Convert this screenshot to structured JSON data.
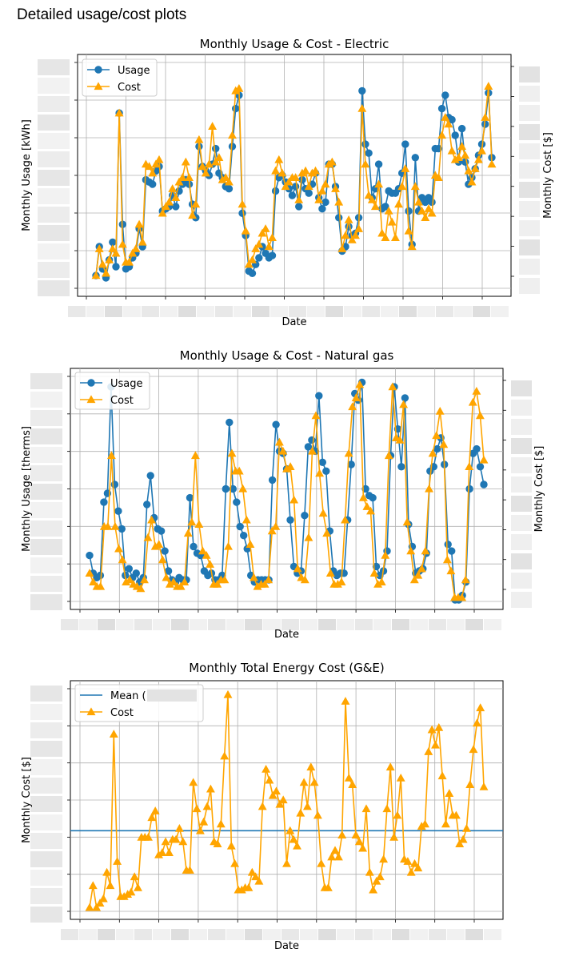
{
  "page": {
    "heading": "Detailed usage/cost plots"
  },
  "colors": {
    "usage": "#1f77b4",
    "cost": "#ffa500",
    "mean": "#1f77b4",
    "grid": "#b0b0b0",
    "redacted": "#dcdcdc"
  },
  "chart_data": [
    {
      "type": "line",
      "title": "Monthly Usage & Cost - Electric",
      "xlabel": "Date",
      "ylabel": "Monthly Usage [kWh]",
      "y2label": "Monthly Cost [$]",
      "tick_labels_redacted": true,
      "grid": true,
      "legend_position": "top-left",
      "series": [
        {
          "name": "Usage",
          "marker": "circle",
          "color": "#1f77b4",
          "values": [
            0.05,
            0.18,
            0.08,
            0.04,
            0.12,
            0.2,
            0.09,
            0.78,
            0.28,
            0.08,
            0.09,
            0.13,
            0.15,
            0.26,
            0.18,
            0.48,
            0.47,
            0.46,
            0.52,
            0.54,
            0.34,
            0.35,
            0.36,
            0.41,
            0.36,
            0.43,
            0.46,
            0.48,
            0.46,
            0.37,
            0.31,
            0.63,
            0.54,
            0.52,
            0.5,
            0.55,
            0.62,
            0.51,
            0.49,
            0.45,
            0.44,
            0.63,
            0.8,
            0.86,
            0.33,
            0.23,
            0.07,
            0.06,
            0.1,
            0.13,
            0.18,
            0.15,
            0.13,
            0.14,
            0.43,
            0.49,
            0.5,
            0.47,
            0.44,
            0.41,
            0.45,
            0.36,
            0.48,
            0.44,
            0.42,
            0.46,
            0.51,
            0.4,
            0.35,
            0.38,
            0.55,
            0.55,
            0.45,
            0.31,
            0.16,
            0.18,
            0.27,
            0.23,
            0.24,
            0.31,
            0.88,
            0.64,
            0.6,
            0.4,
            0.44,
            0.55,
            0.35,
            0.36,
            0.43,
            0.42,
            0.42,
            0.44,
            0.51,
            0.64,
            0.34,
            0.19,
            0.58,
            0.34,
            0.4,
            0.38,
            0.4,
            0.38,
            0.62,
            0.62,
            0.8,
            0.86,
            0.76,
            0.75,
            0.68,
            0.56,
            0.71,
            0.56,
            0.46,
            0.49,
            0.53,
            0.59,
            0.64,
            0.73,
            0.87,
            0.58
          ]
        },
        {
          "name": "Cost",
          "marker": "triangle",
          "color": "#ffa500",
          "values": [
            0.05,
            0.17,
            0.1,
            0.06,
            0.12,
            0.17,
            0.15,
            0.78,
            0.19,
            0.11,
            0.11,
            0.15,
            0.17,
            0.28,
            0.2,
            0.55,
            0.54,
            0.51,
            0.55,
            0.57,
            0.33,
            0.36,
            0.38,
            0.44,
            0.4,
            0.47,
            0.49,
            0.56,
            0.49,
            0.32,
            0.37,
            0.66,
            0.54,
            0.51,
            0.55,
            0.72,
            0.56,
            0.58,
            0.48,
            0.49,
            0.47,
            0.68,
            0.88,
            0.89,
            0.37,
            0.25,
            0.1,
            0.12,
            0.17,
            0.19,
            0.24,
            0.26,
            0.18,
            0.22,
            0.52,
            0.57,
            0.51,
            0.45,
            0.47,
            0.49,
            0.49,
            0.39,
            0.51,
            0.52,
            0.45,
            0.51,
            0.52,
            0.39,
            0.43,
            0.46,
            0.55,
            0.56,
            0.44,
            0.38,
            0.17,
            0.23,
            0.3,
            0.21,
            0.23,
            0.26,
            0.8,
            0.55,
            0.41,
            0.39,
            0.36,
            0.46,
            0.24,
            0.22,
            0.34,
            0.29,
            0.22,
            0.37,
            0.45,
            0.53,
            0.25,
            0.18,
            0.45,
            0.38,
            0.34,
            0.31,
            0.35,
            0.33,
            0.5,
            0.49,
            0.68,
            0.76,
            0.73,
            0.61,
            0.57,
            0.58,
            0.63,
            0.59,
            0.52,
            0.47,
            0.53,
            0.57,
            0.61,
            0.76,
            0.9,
            0.55
          ]
        }
      ]
    },
    {
      "type": "line",
      "title": "Monthly Usage & Cost - Natural gas",
      "xlabel": "Date",
      "ylabel": "Monthly Usage [therms]",
      "y2label": "Monthly Cost [$]",
      "tick_labels_redacted": true,
      "grid": true,
      "legend_position": "top-left",
      "series": [
        {
          "name": "Usage",
          "marker": "circle",
          "color": "#1f77b4",
          "values": [
            0.2,
            0.12,
            0.1,
            0.11,
            0.44,
            0.48,
            0.96,
            0.52,
            0.4,
            0.32,
            0.11,
            0.14,
            0.1,
            0.12,
            0.08,
            0.1,
            0.43,
            0.56,
            0.37,
            0.32,
            0.31,
            0.22,
            0.13,
            0.09,
            0.08,
            0.1,
            0.09,
            0.09,
            0.46,
            0.24,
            0.21,
            0.2,
            0.13,
            0.11,
            0.12,
            0.09,
            0.09,
            0.11,
            0.5,
            0.8,
            0.5,
            0.44,
            0.33,
            0.29,
            0.23,
            0.11,
            0.08,
            0.09,
            0.09,
            0.09,
            0.09,
            0.54,
            0.79,
            0.67,
            0.66,
            0.59,
            0.36,
            0.15,
            0.12,
            0.13,
            0.38,
            0.69,
            0.72,
            0.67,
            0.92,
            0.62,
            0.58,
            0.31,
            0.13,
            0.11,
            0.12,
            0.12,
            0.36,
            0.61,
            0.93,
            0.9,
            0.98,
            0.5,
            0.47,
            0.46,
            0.15,
            0.11,
            0.13,
            0.22,
            0.65,
            0.96,
            0.77,
            0.6,
            0.91,
            0.34,
            0.24,
            0.12,
            0.13,
            0.14,
            0.21,
            0.58,
            0.6,
            0.68,
            0.73,
            0.61,
            0.25,
            0.22,
            0.0,
            0.0,
            0.02,
            0.08,
            0.5,
            0.66,
            0.68,
            0.6,
            0.52
          ]
        },
        {
          "name": "Cost",
          "marker": "triangle",
          "color": "#ffa500",
          "values": [
            0.12,
            0.08,
            0.06,
            0.06,
            0.33,
            0.33,
            0.65,
            0.33,
            0.23,
            0.18,
            0.08,
            0.09,
            0.07,
            0.06,
            0.05,
            0.09,
            0.28,
            0.36,
            0.24,
            0.25,
            0.18,
            0.1,
            0.07,
            0.08,
            0.06,
            0.06,
            0.08,
            0.3,
            0.35,
            0.65,
            0.34,
            0.22,
            0.2,
            0.16,
            0.07,
            0.07,
            0.09,
            0.09,
            0.24,
            0.66,
            0.58,
            0.58,
            0.5,
            0.36,
            0.25,
            0.1,
            0.06,
            0.07,
            0.07,
            0.09,
            0.31,
            0.33,
            0.71,
            0.67,
            0.59,
            0.6,
            0.45,
            0.14,
            0.1,
            0.09,
            0.28,
            0.67,
            0.83,
            0.57,
            0.39,
            0.3,
            0.12,
            0.07,
            0.07,
            0.08,
            0.36,
            0.66,
            0.87,
            0.91,
            0.97,
            0.46,
            0.42,
            0.4,
            0.12,
            0.07,
            0.08,
            0.2,
            0.65,
            0.96,
            0.73,
            0.72,
            0.88,
            0.35,
            0.22,
            0.09,
            0.11,
            0.14,
            0.22,
            0.5,
            0.66,
            0.74,
            0.85,
            0.7,
            0.18,
            0.13,
            0.01,
            0.01,
            0.01,
            0.09,
            0.6,
            0.89,
            0.94,
            0.83,
            0.63
          ]
        }
      ]
    },
    {
      "type": "line",
      "title": "Monthly Total Energy Cost (G&E)",
      "xlabel": "Date",
      "ylabel": "Monthly Cost [$]",
      "tick_labels_redacted": true,
      "grid": true,
      "legend_position": "top-left",
      "mean_line": {
        "label": "Mean (",
        "value": 0.36
      },
      "series": [
        {
          "name": "Cost",
          "marker": "triangle",
          "color": "#ffa500",
          "values": [
            0.01,
            0.11,
            0.01,
            0.03,
            0.05,
            0.17,
            0.11,
            0.8,
            0.22,
            0.06,
            0.06,
            0.07,
            0.08,
            0.15,
            0.1,
            0.33,
            0.33,
            0.33,
            0.42,
            0.45,
            0.25,
            0.26,
            0.31,
            0.26,
            0.32,
            0.32,
            0.37,
            0.31,
            0.18,
            0.18,
            0.58,
            0.46,
            0.36,
            0.4,
            0.47,
            0.55,
            0.31,
            0.3,
            0.39,
            0.7,
            0.98,
            0.29,
            0.21,
            0.09,
            0.09,
            0.1,
            0.1,
            0.17,
            0.15,
            0.13,
            0.47,
            0.64,
            0.59,
            0.52,
            0.54,
            0.48,
            0.5,
            0.21,
            0.36,
            0.32,
            0.29,
            0.44,
            0.58,
            0.47,
            0.65,
            0.58,
            0.43,
            0.21,
            0.1,
            0.1,
            0.24,
            0.27,
            0.24,
            0.34,
            0.95,
            0.6,
            0.57,
            0.34,
            0.31,
            0.28,
            0.46,
            0.17,
            0.09,
            0.13,
            0.15,
            0.23,
            0.46,
            0.65,
            0.33,
            0.43,
            0.6,
            0.23,
            0.22,
            0.17,
            0.21,
            0.19,
            0.38,
            0.39,
            0.72,
            0.82,
            0.75,
            0.83,
            0.61,
            0.39,
            0.53,
            0.43,
            0.43,
            0.3,
            0.32,
            0.37,
            0.57,
            0.73,
            0.85,
            0.92,
            0.56
          ]
        }
      ]
    }
  ]
}
